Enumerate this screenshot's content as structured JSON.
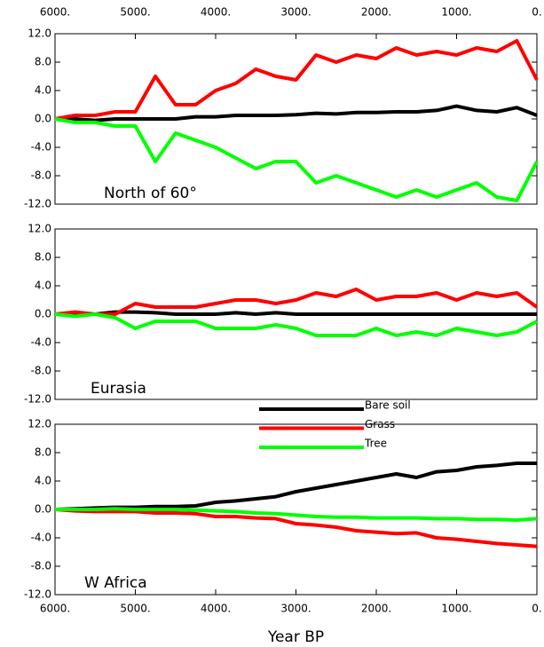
{
  "chart_data": [
    {
      "type": "line",
      "title": "North of 60°",
      "x": [
        6000,
        5750,
        5500,
        5250,
        5000,
        4750,
        4500,
        4250,
        4000,
        3750,
        3500,
        3250,
        3000,
        2750,
        2500,
        2250,
        2000,
        1750,
        1500,
        1250,
        1000,
        750,
        500,
        250,
        0
      ],
      "series": [
        {
          "name": "Bare soil",
          "color": "#000000",
          "values": [
            0,
            0,
            -0.2,
            0,
            0,
            0,
            0,
            0.3,
            0.3,
            0.5,
            0.5,
            0.5,
            0.6,
            0.8,
            0.7,
            0.9,
            0.9,
            1,
            1,
            1.2,
            1.8,
            1.2,
            1,
            1.6,
            0.5
          ]
        },
        {
          "name": "Grass",
          "color": "#ff0000",
          "values": [
            0,
            0.5,
            0.5,
            1,
            1,
            6,
            2,
            2,
            4,
            5,
            7,
            6,
            5.5,
            9,
            8,
            9,
            8.5,
            10,
            9,
            9.5,
            9,
            10,
            9.5,
            11,
            5.5
          ]
        },
        {
          "name": "Tree",
          "color": "#00ff00",
          "values": [
            0,
            -0.5,
            -0.5,
            -1,
            -1,
            -6,
            -2,
            -3,
            -4,
            -5.5,
            -7,
            -6,
            -6,
            -9,
            -8,
            -9,
            -10,
            -11,
            -10,
            -11,
            -10,
            -9,
            -11,
            -11.5,
            -6
          ]
        }
      ],
      "xlim": [
        6000,
        0
      ],
      "xticks": [
        {
          "value": 6000,
          "label": "6000."
        },
        {
          "value": 5000,
          "label": "5000."
        },
        {
          "value": 4000,
          "label": "4000."
        },
        {
          "value": 3000,
          "label": "3000."
        },
        {
          "value": 2000,
          "label": "2000."
        },
        {
          "value": 1000,
          "label": "1000."
        },
        {
          "value": 0,
          "label": "0."
        }
      ],
      "ylim": [
        -12,
        12
      ],
      "yticks": [
        {
          "value": 12,
          "label": "12.0"
        },
        {
          "value": 8,
          "label": "8.0"
        },
        {
          "value": 4,
          "label": "4.0"
        },
        {
          "value": 0,
          "label": "0.0"
        },
        {
          "value": -4,
          "label": "-4.0"
        },
        {
          "value": -8,
          "label": "-8.0"
        },
        {
          "value": -12,
          "label": "-12.0"
        }
      ]
    },
    {
      "type": "line",
      "title": "Eurasia",
      "x": [
        6000,
        5750,
        5500,
        5250,
        5000,
        4750,
        4500,
        4250,
        4000,
        3750,
        3500,
        3250,
        3000,
        2750,
        2500,
        2250,
        2000,
        1750,
        1500,
        1250,
        1000,
        750,
        500,
        250,
        0
      ],
      "series": [
        {
          "name": "Bare soil",
          "color": "#000000",
          "values": [
            0,
            0,
            0,
            0.3,
            0.3,
            0.2,
            0,
            0,
            0,
            0.2,
            0,
            0.2,
            0,
            0,
            0,
            0,
            0,
            0,
            0,
            0,
            0,
            0,
            0,
            0,
            0
          ]
        },
        {
          "name": "Grass",
          "color": "#ff0000",
          "values": [
            0,
            0.3,
            0,
            0,
            1.5,
            1,
            1,
            1,
            1.5,
            2,
            2,
            1.5,
            2,
            3,
            2.5,
            3.5,
            2,
            2.5,
            2.5,
            3,
            2,
            3,
            2.5,
            3,
            1
          ]
        },
        {
          "name": "Tree",
          "color": "#00ff00",
          "values": [
            0,
            -0.3,
            0,
            -0.5,
            -2,
            -1,
            -1,
            -1,
            -2,
            -2,
            -2,
            -1.5,
            -2,
            -3,
            -3,
            -3,
            -2,
            -3,
            -2.5,
            -3,
            -2,
            -2.5,
            -3,
            -2.5,
            -1
          ]
        }
      ],
      "xlim": [
        6000,
        0
      ],
      "ylim": [
        -12,
        12
      ],
      "yticks": [
        {
          "value": 12,
          "label": "12.0"
        },
        {
          "value": 8,
          "label": "8.0"
        },
        {
          "value": 4,
          "label": "4.0"
        },
        {
          "value": 0,
          "label": "0.0"
        },
        {
          "value": -4,
          "label": "-4.0"
        },
        {
          "value": -8,
          "label": "-8.0"
        },
        {
          "value": -12,
          "label": "-12.0"
        }
      ]
    },
    {
      "type": "line",
      "title": "W Africa",
      "xlabel": "Year BP",
      "legend": true,
      "x": [
        6000,
        5750,
        5500,
        5250,
        5000,
        4750,
        4500,
        4250,
        4000,
        3750,
        3500,
        3250,
        3000,
        2750,
        2500,
        2250,
        2000,
        1750,
        1500,
        1250,
        1000,
        750,
        500,
        250,
        0
      ],
      "series": [
        {
          "name": "Bare soil",
          "color": "#000000",
          "values": [
            0,
            0.1,
            0.2,
            0.3,
            0.3,
            0.4,
            0.4,
            0.5,
            1,
            1.2,
            1.5,
            1.8,
            2.5,
            3,
            3.5,
            4,
            4.5,
            5,
            4.5,
            5.3,
            5.5,
            6,
            6.2,
            6.5,
            6.5
          ]
        },
        {
          "name": "Grass",
          "color": "#ff0000",
          "values": [
            0,
            -0.2,
            -0.3,
            -0.3,
            -0.3,
            -0.5,
            -0.5,
            -0.6,
            -1,
            -1,
            -1.2,
            -1.3,
            -2,
            -2.2,
            -2.5,
            -3,
            -3.2,
            -3.4,
            -3.3,
            -4,
            -4.2,
            -4.5,
            -4.8,
            -5,
            -5.2
          ]
        },
        {
          "name": "Tree",
          "color": "#00ff00",
          "values": [
            0,
            0,
            0,
            0.1,
            0,
            0,
            0,
            -0.1,
            -0.2,
            -0.3,
            -0.5,
            -0.6,
            -0.8,
            -1,
            -1.1,
            -1.1,
            -1.2,
            -1.2,
            -1.2,
            -1.3,
            -1.3,
            -1.4,
            -1.4,
            -1.5,
            -1.3
          ]
        }
      ],
      "xlim": [
        6000,
        0
      ],
      "xticks": [
        {
          "value": 6000,
          "label": "6000."
        },
        {
          "value": 5000,
          "label": "5000."
        },
        {
          "value": 4000,
          "label": "4000."
        },
        {
          "value": 3000,
          "label": "3000."
        },
        {
          "value": 2000,
          "label": "2000."
        },
        {
          "value": 1000,
          "label": "1000."
        },
        {
          "value": 0,
          "label": "0."
        }
      ],
      "ylim": [
        -12,
        12
      ],
      "yticks": [
        {
          "value": 12,
          "label": "12.0"
        },
        {
          "value": 8,
          "label": "8.0"
        },
        {
          "value": 4,
          "label": "4.0"
        },
        {
          "value": 0,
          "label": "0.0"
        },
        {
          "value": -4,
          "label": "-4.0"
        },
        {
          "value": -8,
          "label": "-8.0"
        },
        {
          "value": -12,
          "label": "-12.0"
        }
      ]
    }
  ]
}
